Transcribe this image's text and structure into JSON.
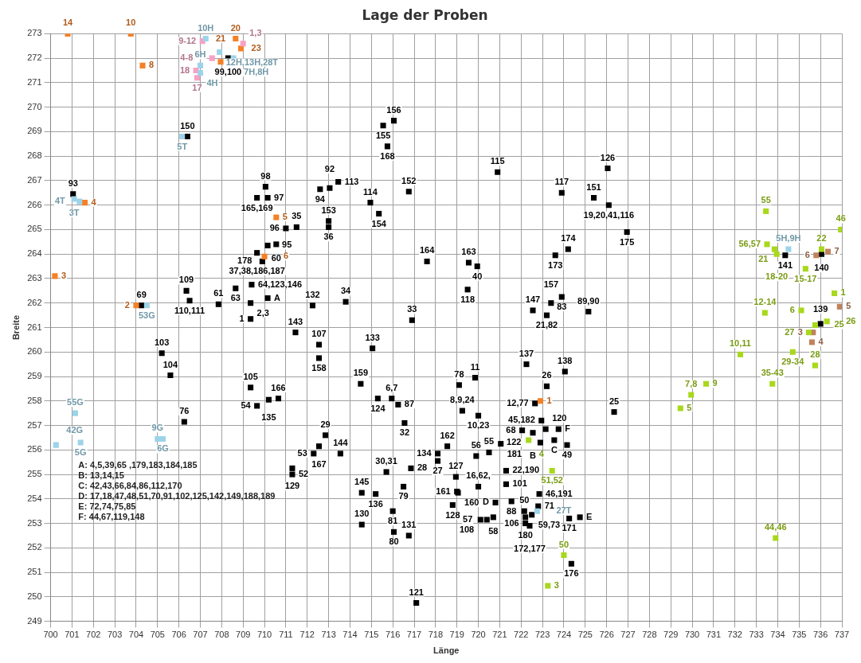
{
  "chart_data": {
    "type": "scatter",
    "title": "Lage der Proben",
    "xlabel": "Länge",
    "ylabel": "Breite",
    "marker": "square",
    "grid": true,
    "legend": false,
    "xlim": [
      700,
      737
    ],
    "xticks": [
      700,
      701,
      702,
      703,
      704,
      705,
      706,
      707,
      708,
      709,
      710,
      711,
      712,
      713,
      714,
      715,
      716,
      717,
      718,
      719,
      720,
      721,
      722,
      723,
      724,
      725,
      726,
      727,
      728,
      729,
      730,
      731,
      732,
      733,
      734,
      735,
      736,
      737
    ],
    "ylim": [
      249,
      273
    ],
    "yticks": [
      249,
      250,
      251,
      252,
      253,
      254,
      255,
      256,
      257,
      258,
      259,
      260,
      261,
      262,
      263,
      264,
      265,
      266,
      267,
      268,
      269,
      270,
      271,
      272,
      273
    ],
    "annotations": [
      "A: 4,5,39,65 ,179,183,184,185",
      "B: 13,14,15",
      "C: 42,43,66,84,86,112,170",
      "D: 17,18,47,48,51,70,91,102,125,142,149,188,189",
      "E: 72,74,75,85",
      "F: 44,67,119,148",
      {
        "text": "99,100",
        "x": 708.3,
        "y": 272.0
      },
      {
        "text": "150",
        "x": 706.4,
        "y": 268.8
      },
      {
        "text": "93",
        "x": 701.05,
        "y": 266.45
      },
      {
        "text": "98",
        "x": 710.05,
        "y": 266.75
      },
      {
        "text": "97",
        "x": 710.15,
        "y": 266.3
      },
      {
        "text": "165,169",
        "x": 709.65,
        "y": 266.3
      },
      {
        "text": "94",
        "x": 712.6,
        "y": 266.65
      },
      {
        "text": "92",
        "x": 713.05,
        "y": 266.7
      },
      {
        "text": "113",
        "x": 713.45,
        "y": 266.95
      },
      {
        "text": "96",
        "x": 711.0,
        "y": 265.05
      },
      {
        "text": "35",
        "x": 711.5,
        "y": 265.1
      },
      {
        "text": "153",
        "x": 713.0,
        "y": 265.35
      },
      {
        "text": "36",
        "x": 713.0,
        "y": 265.1
      },
      {
        "text": "95",
        "x": 710.15,
        "y": 264.35
      },
      {
        "text": "60",
        "x": 710.55,
        "y": 264.4
      },
      {
        "text": "37,38,186,187",
        "x": 709.65,
        "y": 264.05
      },
      {
        "text": "178",
        "x": 709.9,
        "y": 263.7
      },
      {
        "text": "109",
        "x": 706.35,
        "y": 262.5
      },
      {
        "text": "110,111",
        "x": 706.5,
        "y": 262.1
      },
      {
        "text": "61",
        "x": 707.85,
        "y": 261.95
      },
      {
        "text": "63",
        "x": 708.65,
        "y": 262.6
      },
      {
        "text": "64,123,146",
        "x": 709.4,
        "y": 262.75
      },
      {
        "text": "2,3",
        "x": 709.35,
        "y": 262.0
      },
      {
        "text": "A",
        "x": 710.15,
        "y": 262.2
      },
      {
        "text": "69",
        "x": 704.25,
        "y": 261.9
      },
      {
        "text": "132",
        "x": 712.25,
        "y": 261.9
      },
      {
        "text": "34",
        "x": 713.8,
        "y": 262.05
      },
      {
        "text": "1",
        "x": 709.35,
        "y": 261.35
      },
      {
        "text": "143",
        "x": 711.45,
        "y": 260.8
      },
      {
        "text": "107",
        "x": 712.55,
        "y": 260.3
      },
      {
        "text": "158",
        "x": 712.55,
        "y": 259.75
      },
      {
        "text": "103",
        "x": 705.2,
        "y": 259.95
      },
      {
        "text": "104",
        "x": 705.6,
        "y": 259.05
      },
      {
        "text": "105",
        "x": 709.35,
        "y": 258.55
      },
      {
        "text": "166",
        "x": 710.65,
        "y": 258.1
      },
      {
        "text": "135",
        "x": 710.2,
        "y": 258.05
      },
      {
        "text": "54",
        "x": 709.65,
        "y": 257.8
      },
      {
        "text": "76",
        "x": 706.25,
        "y": 257.15
      },
      {
        "text": "159",
        "x": 714.5,
        "y": 258.7
      },
      {
        "text": "29",
        "x": 712.85,
        "y": 256.6
      },
      {
        "text": "167",
        "x": 712.55,
        "y": 256.15
      },
      {
        "text": "53",
        "x": 712.3,
        "y": 255.85
      },
      {
        "text": "144",
        "x": 713.55,
        "y": 255.85
      },
      {
        "text": "129",
        "x": 711.3,
        "y": 255.25
      },
      {
        "text": "52",
        "x": 711.3,
        "y": 255.0
      },
      {
        "text": "145",
        "x": 714.55,
        "y": 254.25
      },
      {
        "text": "130",
        "x": 714.55,
        "y": 252.95
      },
      {
        "text": "155",
        "x": 715.55,
        "y": 269.25
      },
      {
        "text": "156",
        "x": 716.05,
        "y": 269.45
      },
      {
        "text": "168",
        "x": 715.75,
        "y": 268.4
      },
      {
        "text": "115",
        "x": 720.9,
        "y": 267.35
      },
      {
        "text": "126",
        "x": 726.05,
        "y": 267.5
      },
      {
        "text": "152",
        "x": 716.75,
        "y": 266.55
      },
      {
        "text": "114",
        "x": 714.95,
        "y": 266.1
      },
      {
        "text": "154",
        "x": 715.35,
        "y": 265.65
      },
      {
        "text": "117",
        "x": 723.9,
        "y": 266.5
      },
      {
        "text": "151",
        "x": 725.4,
        "y": 266.3
      },
      {
        "text": "19,20,41,116",
        "x": 726.1,
        "y": 266.0
      },
      {
        "text": "175",
        "x": 726.95,
        "y": 264.9
      },
      {
        "text": "174",
        "x": 724.2,
        "y": 264.2
      },
      {
        "text": "173",
        "x": 723.6,
        "y": 263.95
      },
      {
        "text": "164",
        "x": 717.6,
        "y": 263.7
      },
      {
        "text": "163",
        "x": 719.55,
        "y": 263.65
      },
      {
        "text": "40",
        "x": 719.95,
        "y": 263.5
      },
      {
        "text": "118",
        "x": 719.5,
        "y": 262.55
      },
      {
        "text": "157",
        "x": 723.4,
        "y": 262.0
      },
      {
        "text": "83",
        "x": 723.9,
        "y": 262.25
      },
      {
        "text": "147",
        "x": 722.55,
        "y": 261.7
      },
      {
        "text": "21,82",
        "x": 723.2,
        "y": 261.5
      },
      {
        "text": "89,90",
        "x": 725.15,
        "y": 261.65
      },
      {
        "text": "33",
        "x": 716.9,
        "y": 261.3
      },
      {
        "text": "133",
        "x": 715.05,
        "y": 260.15
      },
      {
        "text": "137",
        "x": 722.25,
        "y": 259.5
      },
      {
        "text": "138",
        "x": 724.05,
        "y": 259.2
      },
      {
        "text": "11",
        "x": 719.85,
        "y": 258.95
      },
      {
        "text": "78",
        "x": 719.1,
        "y": 258.65
      },
      {
        "text": "26",
        "x": 723.2,
        "y": 258.6
      },
      {
        "text": "12,77",
        "x": 722.65,
        "y": 257.9
      },
      {
        "text": "6,7",
        "x": 715.95,
        "y": 258.1
      },
      {
        "text": "124",
        "x": 715.3,
        "y": 258.1
      },
      {
        "text": "87",
        "x": 716.25,
        "y": 257.85
      },
      {
        "text": "8,9,24",
        "x": 719.25,
        "y": 257.6
      },
      {
        "text": "10,23",
        "x": 720.0,
        "y": 257.4
      },
      {
        "text": "32",
        "x": 716.55,
        "y": 257.1
      },
      {
        "text": "25",
        "x": 726.35,
        "y": 257.55
      },
      {
        "text": "45,182",
        "x": 722.95,
        "y": 257.2
      },
      {
        "text": "F",
        "x": 723.75,
        "y": 256.85
      },
      {
        "text": "120",
        "x": 723.15,
        "y": 256.85
      },
      {
        "text": "68",
        "x": 722.05,
        "y": 256.8
      },
      {
        "text": "B",
        "x": 722.55,
        "y": 256.7
      },
      {
        "text": "49",
        "x": 724.15,
        "y": 256.2
      },
      {
        "text": "C",
        "x": 723.55,
        "y": 256.4
      },
      {
        "text": "122",
        "x": 722.9,
        "y": 256.3
      },
      {
        "text": "181",
        "x": 721.05,
        "y": 256.25
      },
      {
        "text": "55",
        "x": 720.5,
        "y": 255.9
      },
      {
        "text": "56",
        "x": 719.9,
        "y": 255.75
      },
      {
        "text": "162",
        "x": 718.55,
        "y": 256.15
      },
      {
        "text": "134",
        "x": 718.1,
        "y": 255.85
      },
      {
        "text": "27",
        "x": 718.1,
        "y": 255.55
      },
      {
        "text": "30,31",
        "x": 715.7,
        "y": 255.1
      },
      {
        "text": "28",
        "x": 716.85,
        "y": 255.25
      },
      {
        "text": "22,190",
        "x": 721.3,
        "y": 255.15
      },
      {
        "text": "127",
        "x": 718.95,
        "y": 254.9
      },
      {
        "text": "16,62,",
        "x": 720.0,
        "y": 254.5
      },
      {
        "text": "101",
        "x": 721.3,
        "y": 254.6
      },
      {
        "text": "79",
        "x": 716.5,
        "y": 254.5
      },
      {
        "text": "136",
        "x": 715.2,
        "y": 254.2
      },
      {
        "text": "161",
        "x": 719.0,
        "y": 254.3
      },
      {
        "text": "160",
        "x": 719.05,
        "y": 254.25
      },
      {
        "text": "46,191",
        "x": 722.85,
        "y": 254.2
      },
      {
        "text": "D",
        "x": 720.8,
        "y": 253.85
      },
      {
        "text": "88",
        "x": 721.55,
        "y": 253.9
      },
      {
        "text": "71",
        "x": 722.8,
        "y": 253.7
      },
      {
        "text": "128",
        "x": 718.8,
        "y": 253.75
      },
      {
        "text": "81",
        "x": 716.0,
        "y": 253.5
      },
      {
        "text": "50",
        "x": 722.15,
        "y": 253.5
      },
      {
        "text": "180",
        "x": 722.2,
        "y": 253.25
      },
      {
        "text": "59,73",
        "x": 722.5,
        "y": 253.35
      },
      {
        "text": "58",
        "x": 720.7,
        "y": 253.25
      },
      {
        "text": "108",
        "x": 720.1,
        "y": 253.15
      },
      {
        "text": "57",
        "x": 720.4,
        "y": 253.15
      },
      {
        "text": "106",
        "x": 722.2,
        "y": 253.0
      },
      {
        "text": "172,177",
        "x": 722.4,
        "y": 252.9
      },
      {
        "text": "171",
        "x": 724.25,
        "y": 253.2
      },
      {
        "text": "E",
        "x": 724.75,
        "y": 253.25
      },
      {
        "text": "80",
        "x": 716.05,
        "y": 252.65
      },
      {
        "text": "131",
        "x": 716.75,
        "y": 252.5
      },
      {
        "text": "176",
        "x": 724.35,
        "y": 251.35
      },
      {
        "text": "121",
        "x": 717.1,
        "y": 249.75
      },
      {
        "text": "139",
        "x": 736.0,
        "y": 261.15
      },
      {
        "text": "140",
        "x": 736.05,
        "y": 264.0
      },
      {
        "text": "141",
        "x": 734.35,
        "y": 263.95
      },
      {
        "text": "14",
        "x": 700.8,
        "y": 273.0
      },
      {
        "text": "10",
        "x": 703.75,
        "y": 273.0
      },
      {
        "text": "8",
        "x": 704.3,
        "y": 271.7
      },
      {
        "text": "20",
        "x": 708.65,
        "y": 272.8
      },
      {
        "text": "23",
        "x": 708.9,
        "y": 272.4
      },
      {
        "text": "21",
        "x": 707.95,
        "y": 271.85
      },
      {
        "text": "5",
        "x": 710.55,
        "y": 265.5
      },
      {
        "text": "6",
        "x": 710.0,
        "y": 263.9
      },
      {
        "text": "3",
        "x": 700.2,
        "y": 263.1
      },
      {
        "text": "2",
        "x": 704.0,
        "y": 261.9
      },
      {
        "text": "4",
        "x": 701.6,
        "y": 266.1
      },
      {
        "text": "1",
        "x": 722.9,
        "y": 258.0
      },
      {
        "text": "9-12",
        "x": 707.1,
        "y": 272.7
      },
      {
        "text": "1,3",
        "x": 709.0,
        "y": 272.6
      },
      {
        "text": "4-8",
        "x": 707.55,
        "y": 272.0
      },
      {
        "text": "18",
        "x": 706.8,
        "y": 271.5
      },
      {
        "text": "17",
        "x": 706.85,
        "y": 271.2
      },
      {
        "text": "10H",
        "x": 707.25,
        "y": 272.8
      },
      {
        "text": "6H",
        "x": 707.0,
        "y": 271.7
      },
      {
        "text": "4H",
        "x": 707.0,
        "y": 271.4
      },
      {
        "text": "12H,13H,28T",
        "x": 707.9,
        "y": 272.25
      },
      {
        "text": "7H,8H",
        "x": 708.55,
        "y": 272.0
      },
      {
        "text": "5T",
        "x": 706.15,
        "y": 268.8
      },
      {
        "text": "3T",
        "x": 701.1,
        "y": 266.25
      },
      {
        "text": "4T",
        "x": 701.35,
        "y": 266.15
      },
      {
        "text": "53G",
        "x": 704.5,
        "y": 261.9
      },
      {
        "text": "55G",
        "x": 701.15,
        "y": 257.5
      },
      {
        "text": "42G",
        "x": 700.25,
        "y": 256.2
      },
      {
        "text": "5G",
        "x": 701.4,
        "y": 256.3
      },
      {
        "text": "9G",
        "x": 705.0,
        "y": 256.45
      },
      {
        "text": "6G",
        "x": 705.25,
        "y": 256.45
      },
      {
        "text": "5H,9H",
        "x": 734.5,
        "y": 264.2
      },
      {
        "text": "27T",
        "x": 722.75,
        "y": 253.5
      },
      {
        "text": "6",
        "x": 735.8,
        "y": 263.95
      },
      {
        "text": "7",
        "x": 736.35,
        "y": 264.1
      },
      {
        "text": "5",
        "x": 736.9,
        "y": 261.85
      },
      {
        "text": "3",
        "x": 735.65,
        "y": 260.8
      },
      {
        "text": "4",
        "x": 735.6,
        "y": 260.4
      },
      {
        "text": "55",
        "x": 733.45,
        "y": 265.75
      },
      {
        "text": "46",
        "x": 736.95,
        "y": 265.0
      },
      {
        "text": "56,57",
        "x": 733.5,
        "y": 264.4
      },
      {
        "text": "21",
        "x": 733.85,
        "y": 264.2
      },
      {
        "text": "18-20",
        "x": 733.95,
        "y": 264.0
      },
      {
        "text": "22",
        "x": 736.05,
        "y": 264.2
      },
      {
        "text": "15-17",
        "x": 735.3,
        "y": 263.4
      },
      {
        "text": "1",
        "x": 736.65,
        "y": 262.4
      },
      {
        "text": "12-14",
        "x": 733.4,
        "y": 261.6
      },
      {
        "text": "6",
        "x": 735.1,
        "y": 261.7
      },
      {
        "text": "25",
        "x": 735.75,
        "y": 261.1
      },
      {
        "text": "26",
        "x": 736.3,
        "y": 261.25
      },
      {
        "text": "27",
        "x": 735.45,
        "y": 260.8
      },
      {
        "text": "10,11",
        "x": 732.25,
        "y": 259.9
      },
      {
        "text": "29-34",
        "x": 734.7,
        "y": 260.0
      },
      {
        "text": "28",
        "x": 735.75,
        "y": 259.45
      },
      {
        "text": "9",
        "x": 730.65,
        "y": 258.7
      },
      {
        "text": "7,8",
        "x": 729.95,
        "y": 258.25
      },
      {
        "text": "5",
        "x": 729.45,
        "y": 257.7
      },
      {
        "text": "35-43",
        "x": 733.75,
        "y": 258.7
      },
      {
        "text": "44,46",
        "x": 733.9,
        "y": 252.4
      },
      {
        "text": "4",
        "x": 722.35,
        "y": 256.4
      },
      {
        "text": "51,52",
        "x": 723.45,
        "y": 255.15
      },
      {
        "text": "50",
        "x": 724.0,
        "y": 251.7
      },
      {
        "text": "3",
        "x": 723.25,
        "y": 250.45
      }
    ],
    "series": [
      {
        "color": "#000000",
        "x": [
          708.3,
          706.4,
          701.05,
          710.05,
          710.15,
          709.65,
          712.6,
          713.05,
          713.45,
          711.0,
          711.5,
          713.0,
          713.0,
          710.15,
          710.55,
          709.65,
          709.9,
          706.35,
          706.5,
          707.85,
          708.65,
          709.4,
          709.35,
          710.15,
          704.25,
          712.25,
          713.8,
          709.35,
          711.45,
          712.55,
          712.55,
          705.2,
          705.6,
          709.35,
          710.65,
          710.2,
          709.65,
          706.25,
          714.5,
          712.85,
          712.55,
          712.3,
          713.55,
          711.3,
          711.3,
          714.55,
          714.55,
          715.55,
          716.05,
          715.75,
          720.9,
          726.05,
          716.75,
          714.95,
          715.35,
          723.9,
          725.4,
          726.1,
          726.95,
          724.2,
          723.6,
          717.6,
          719.55,
          719.95,
          719.5,
          723.4,
          723.9,
          722.55,
          723.2,
          725.15,
          716.9,
          715.05,
          722.25,
          724.05,
          719.85,
          719.1,
          723.2,
          722.65,
          715.95,
          715.3,
          716.25,
          719.25,
          720.0,
          716.55,
          726.35,
          722.95,
          723.75,
          723.15,
          722.05,
          722.55,
          724.15,
          723.55,
          722.9,
          721.05,
          720.5,
          719.9,
          718.55,
          718.1,
          718.1,
          715.7,
          716.85,
          721.3,
          718.95,
          720.0,
          721.3,
          716.5,
          715.2,
          719.0,
          719.05,
          722.85,
          720.8,
          721.55,
          722.8,
          718.8,
          716.0,
          722.15,
          722.2,
          722.5,
          720.7,
          720.1,
          720.4,
          722.2,
          722.4,
          724.25,
          724.75,
          716.05,
          716.75,
          724.35,
          717.1,
          736.0,
          736.05,
          734.35
        ],
        "values": [
          272.0,
          268.8,
          266.45,
          266.75,
          266.3,
          266.3,
          266.65,
          266.7,
          266.95,
          265.05,
          265.1,
          265.35,
          265.1,
          264.35,
          264.4,
          264.05,
          263.7,
          262.5,
          262.1,
          261.95,
          262.6,
          262.75,
          262.0,
          262.2,
          261.9,
          261.9,
          262.05,
          261.35,
          260.8,
          260.3,
          259.75,
          259.95,
          259.05,
          258.55,
          258.1,
          258.05,
          257.8,
          257.15,
          258.7,
          256.6,
          256.15,
          255.85,
          255.85,
          255.25,
          255.0,
          254.25,
          252.95,
          269.25,
          269.45,
          268.4,
          267.35,
          267.5,
          266.55,
          266.1,
          265.65,
          266.5,
          266.3,
          266.0,
          264.9,
          264.2,
          263.95,
          263.7,
          263.65,
          263.5,
          262.55,
          262.0,
          262.25,
          261.7,
          261.5,
          261.65,
          261.3,
          260.15,
          259.5,
          259.2,
          258.95,
          258.65,
          258.6,
          257.9,
          258.1,
          258.1,
          257.85,
          257.6,
          257.4,
          257.1,
          257.55,
          257.2,
          256.85,
          256.85,
          256.8,
          256.7,
          256.2,
          256.4,
          256.3,
          256.25,
          255.9,
          255.75,
          256.15,
          255.85,
          255.55,
          255.1,
          255.25,
          255.15,
          254.9,
          254.5,
          254.6,
          254.5,
          254.2,
          254.3,
          254.25,
          254.2,
          253.85,
          253.9,
          253.7,
          253.75,
          253.5,
          253.5,
          253.25,
          253.35,
          253.25,
          253.15,
          253.15,
          253.0,
          252.9,
          253.2,
          253.25,
          252.65,
          252.5,
          251.35,
          249.75,
          261.15,
          264.0,
          263.95
        ]
      },
      {
        "color": "#f58025",
        "x": [
          700.8,
          703.75,
          704.3,
          708.65,
          708.9,
          707.95,
          710.55,
          710.0,
          700.2,
          704.0,
          701.6,
          722.9
        ],
        "values": [
          273.0,
          273.0,
          271.7,
          272.8,
          272.4,
          271.85,
          265.5,
          263.9,
          263.1,
          261.9,
          266.1,
          258.0
        ]
      },
      {
        "color": "#f7a1c4",
        "x": [
          707.1,
          709.0,
          707.55,
          706.8,
          706.85
        ],
        "values": [
          272.7,
          272.6,
          272.0,
          271.5,
          271.2
        ]
      },
      {
        "color": "#9dd3e8",
        "x": [
          707.25,
          707.0,
          707.0,
          707.9,
          708.55,
          706.15,
          701.1,
          701.35,
          704.5,
          701.15,
          700.25,
          701.4,
          705.0,
          705.25,
          734.5,
          722.75
        ],
        "values": [
          272.8,
          271.7,
          271.4,
          272.25,
          272.0,
          268.8,
          266.25,
          266.15,
          261.9,
          257.5,
          256.2,
          256.3,
          256.45,
          256.45,
          264.2,
          253.5
        ]
      },
      {
        "color": "#c0825c",
        "x": [
          735.8,
          736.35,
          736.9,
          735.65,
          735.6
        ],
        "values": [
          263.95,
          264.1,
          261.85,
          260.8,
          260.4
        ]
      },
      {
        "color": "#a8d81c",
        "x": [
          733.45,
          736.95,
          733.5,
          733.85,
          733.95,
          736.05,
          735.3,
          736.65,
          733.4,
          735.1,
          735.75,
          736.3,
          735.45,
          732.25,
          734.7,
          735.75,
          730.65,
          729.95,
          729.45,
          733.75,
          733.9,
          722.35,
          723.45,
          724.0,
          723.25
        ],
        "values": [
          265.75,
          265.0,
          264.4,
          264.2,
          264.0,
          264.2,
          263.4,
          262.4,
          261.6,
          261.7,
          261.1,
          261.25,
          260.8,
          259.9,
          260.0,
          259.45,
          258.7,
          258.25,
          257.7,
          258.7,
          252.4,
          256.4,
          255.15,
          251.7,
          250.45
        ]
      }
    ]
  }
}
